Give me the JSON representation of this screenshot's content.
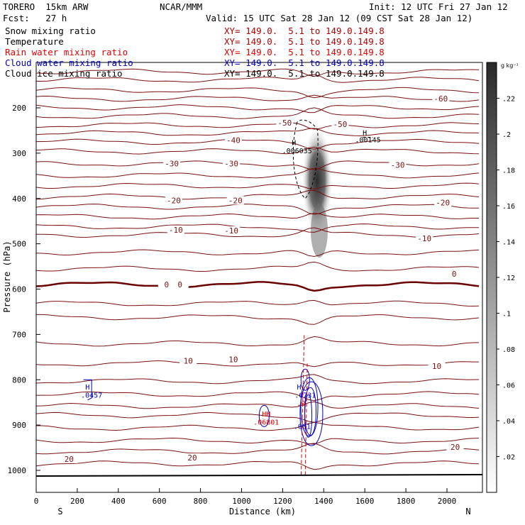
{
  "header": {
    "model": "TORERO  15km ARW",
    "org": "NCAR/MMM",
    "init": "Init: 12 UTC Fri 27 Jan 12",
    "fcst": "Fcst:   27 h",
    "valid": "Valid: 15 UTC Sat 28 Jan 12 (09 CST Sat 28 Jan 12)"
  },
  "fields": [
    {
      "name": "Snow mixing ratio",
      "xy": "",
      "color": "#000000"
    },
    {
      "name": "Temperature",
      "xy": "XY= 149.0.  5.1 to 149.0.149.8",
      "color": "#b00000"
    },
    {
      "name": "Rain water mixing ratio",
      "xy": "XY= 149.0.  5.1 to 149.0.149.8",
      "color": "#e00000"
    },
    {
      "name": "Cloud water mixing ratio",
      "xy": "XY= 149.0.  5.1 to 149.0.149.8",
      "color": "#0000c0"
    },
    {
      "name": "Cloud ice mixing ratio",
      "xy": "XY= 149.0.  5.1 to 149.0.149.8",
      "color": "#000000"
    }
  ],
  "xy_top": "XY= 149.0.  5.1 to 149.0.149.8",
  "chart_data": {
    "type": "contour",
    "xlabel": "Distance (km)",
    "ylabel": "Pressure (hPa)",
    "xlim": [
      0,
      2170
    ],
    "ylim": [
      1050,
      95
    ],
    "x_ticks": [
      0,
      200,
      400,
      600,
      800,
      1000,
      1200,
      1400,
      1600,
      1800,
      2000
    ],
    "y_ticks": [
      200,
      300,
      400,
      500,
      600,
      700,
      800,
      900,
      1000
    ],
    "x_end_labels": {
      "left": "S",
      "right": "N"
    },
    "colorbar": {
      "unit": "g kg⁻¹",
      "ticks": [
        ".02",
        ".04",
        ".06",
        ".08",
        ".1",
        ".12",
        ".14",
        ".16",
        ".18",
        ".2",
        ".22"
      ],
      "values": [
        0.02,
        0.04,
        0.06,
        0.08,
        0.1,
        0.12,
        0.14,
        0.16,
        0.18,
        0.2,
        0.22
      ],
      "max": 0.24
    },
    "temperature_labels": [
      {
        "text": "-60",
        "x": 1970,
        "p": 180
      },
      {
        "text": "-50",
        "x": 1210,
        "p": 233
      },
      {
        "text": "-50",
        "x": 1480,
        "p": 236
      },
      {
        "text": "-40",
        "x": 960,
        "p": 271
      },
      {
        "text": "-30",
        "x": 660,
        "p": 323
      },
      {
        "text": "-30",
        "x": 950,
        "p": 323
      },
      {
        "text": "-30",
        "x": 1760,
        "p": 326
      },
      {
        "text": "-20",
        "x": 670,
        "p": 404
      },
      {
        "text": "-20",
        "x": 970,
        "p": 404
      },
      {
        "text": "-20",
        "x": 1980,
        "p": 409
      },
      {
        "text": "-10",
        "x": 680,
        "p": 469
      },
      {
        "text": "-10",
        "x": 950,
        "p": 471
      },
      {
        "text": "-10",
        "x": 1890,
        "p": 488
      },
      {
        "text": "0",
        "x": 635,
        "p": 590
      },
      {
        "text": "0",
        "x": 700,
        "p": 590
      },
      {
        "text": "0",
        "x": 2035,
        "p": 566
      },
      {
        "text": "10",
        "x": 740,
        "p": 758
      },
      {
        "text": "10",
        "x": 960,
        "p": 755
      },
      {
        "text": "10",
        "x": 1950,
        "p": 770
      },
      {
        "text": "20",
        "x": 160,
        "p": 975
      },
      {
        "text": "20",
        "x": 760,
        "p": 972
      },
      {
        "text": "20",
        "x": 2040,
        "p": 948
      }
    ],
    "max_labels": [
      {
        "text": "H",
        "x": 1255,
        "p": 276,
        "color": "#000000"
      },
      {
        "text": ".006035",
        "x": 1270,
        "p": 294,
        "color": "#000000"
      },
      {
        "text": "H",
        "x": 1600,
        "p": 254,
        "color": "#000000"
      },
      {
        "text": ".00145",
        "x": 1615,
        "p": 270,
        "color": "#000000"
      },
      {
        "text": "H",
        "x": 250,
        "p": 815,
        "color": "#0000c0"
      },
      {
        "text": ".0457",
        "x": 270,
        "p": 833,
        "color": "#0000c0"
      },
      {
        "text": "H",
        "x": 1280,
        "p": 815,
        "color": "#0000c0"
      },
      {
        "text": ".6731",
        "x": 1310,
        "p": 833,
        "color": "#0000c0"
      },
      {
        "text": ".0",
        "x": 1290,
        "p": 851,
        "color": "#e00000"
      },
      {
        "text": "HH",
        "x": 1120,
        "p": 875,
        "color": "#e00000"
      },
      {
        "text": ".06801",
        "x": 1120,
        "p": 893,
        "color": "#e00000"
      },
      {
        "text": ".001",
        "x": 1295,
        "p": 902,
        "color": "#0000c0"
      }
    ]
  }
}
